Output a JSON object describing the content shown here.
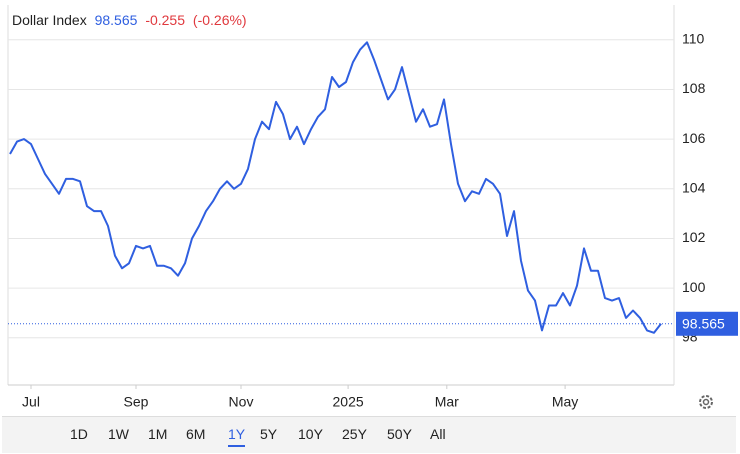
{
  "header": {
    "name": "Dollar Index",
    "change": "-0.255",
    "change_pct": "(-0.26%)"
  },
  "chart_data": {
    "type": "line",
    "series": [
      {
        "name": "Dollar Index",
        "color": "#2f5fe0",
        "values": [
          105.4,
          105.9,
          106.0,
          105.8,
          105.2,
          104.6,
          104.2,
          103.8,
          104.4,
          104.4,
          104.3,
          103.3,
          103.1,
          103.1,
          102.5,
          101.3,
          100.8,
          101.0,
          101.7,
          101.6,
          101.7,
          100.9,
          100.9,
          100.8,
          100.5,
          101.0,
          102.0,
          102.5,
          103.1,
          103.5,
          104.0,
          104.3,
          104.0,
          104.2,
          104.8,
          106.0,
          106.7,
          106.4,
          107.5,
          107.0,
          106.0,
          106.5,
          105.8,
          106.4,
          106.9,
          107.2,
          108.5,
          108.1,
          108.3,
          109.1,
          109.6,
          109.9,
          109.2,
          108.4,
          107.6,
          108.0,
          108.9,
          107.8,
          106.7,
          107.2,
          106.5,
          106.6,
          107.6,
          105.8,
          104.2,
          103.5,
          103.9,
          103.8,
          104.4,
          104.2,
          103.8,
          102.1,
          103.1,
          101.1,
          99.9,
          99.5,
          98.3,
          99.3,
          99.3,
          99.8,
          99.3,
          100.1,
          101.6,
          100.7,
          100.7,
          99.6,
          99.5,
          99.6,
          98.8,
          99.1,
          98.8,
          98.3,
          98.2,
          98.565
        ]
      }
    ],
    "xlim": [
      0,
      94
    ],
    "xticks": [
      {
        "value": 3,
        "label": "Jul"
      },
      {
        "value": 18,
        "label": "Sep"
      },
      {
        "value": 33,
        "label": "Nov"
      },
      {
        "value": 48.3,
        "label": "2025"
      },
      {
        "value": 62.4,
        "label": "Mar"
      },
      {
        "value": 79.3,
        "label": "May"
      }
    ],
    "ylim": [
      96.1,
      111.4
    ],
    "yticks": [
      98,
      100,
      102,
      104,
      106,
      108,
      110
    ],
    "grid": true
  },
  "ranges": [
    "1D",
    "1W",
    "1M",
    "6M",
    "1Y",
    "5Y",
    "10Y",
    "25Y",
    "50Y",
    "All"
  ],
  "active_range": "1Y"
}
